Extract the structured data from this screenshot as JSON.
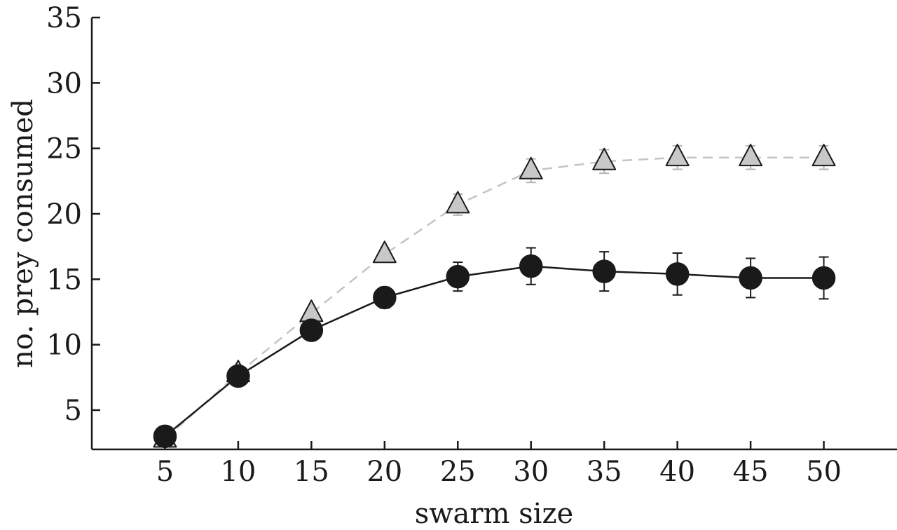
{
  "chart_data": {
    "type": "line",
    "title": "",
    "xlabel": "swarm size",
    "ylabel": "no. prey consumed",
    "x": [
      5,
      10,
      15,
      20,
      25,
      30,
      35,
      40,
      45,
      50
    ],
    "x_ticks": [
      "5",
      "10",
      "15",
      "20",
      "25",
      "30",
      "35",
      "40",
      "45",
      "50"
    ],
    "xlim": [
      0,
      55
    ],
    "y_ticks": [
      "5",
      "10",
      "15",
      "20",
      "25",
      "30",
      "35"
    ],
    "ylim": [
      2,
      35
    ],
    "grid": false,
    "legend": "none",
    "series": [
      {
        "marker": "triangle",
        "line_style": "dashed",
        "color": "#c8c8c8",
        "stroke": "#1a1a1a",
        "values": [
          2.8,
          7.8,
          12.4,
          16.9,
          20.7,
          23.3,
          24.0,
          24.3,
          24.3,
          24.3
        ],
        "error": [
          0.2,
          0.3,
          0.4,
          0.5,
          0.8,
          0.9,
          0.9,
          0.9,
          0.9,
          0.9
        ]
      },
      {
        "marker": "circle",
        "line_style": "solid",
        "color": "#1a1a1a",
        "stroke": "#1a1a1a",
        "values": [
          3.0,
          7.6,
          11.1,
          13.6,
          15.2,
          16.0,
          15.6,
          15.4,
          15.1,
          15.1
        ],
        "error": [
          0.2,
          0.3,
          0.4,
          0.8,
          1.1,
          1.4,
          1.5,
          1.6,
          1.5,
          1.6
        ]
      }
    ]
  }
}
